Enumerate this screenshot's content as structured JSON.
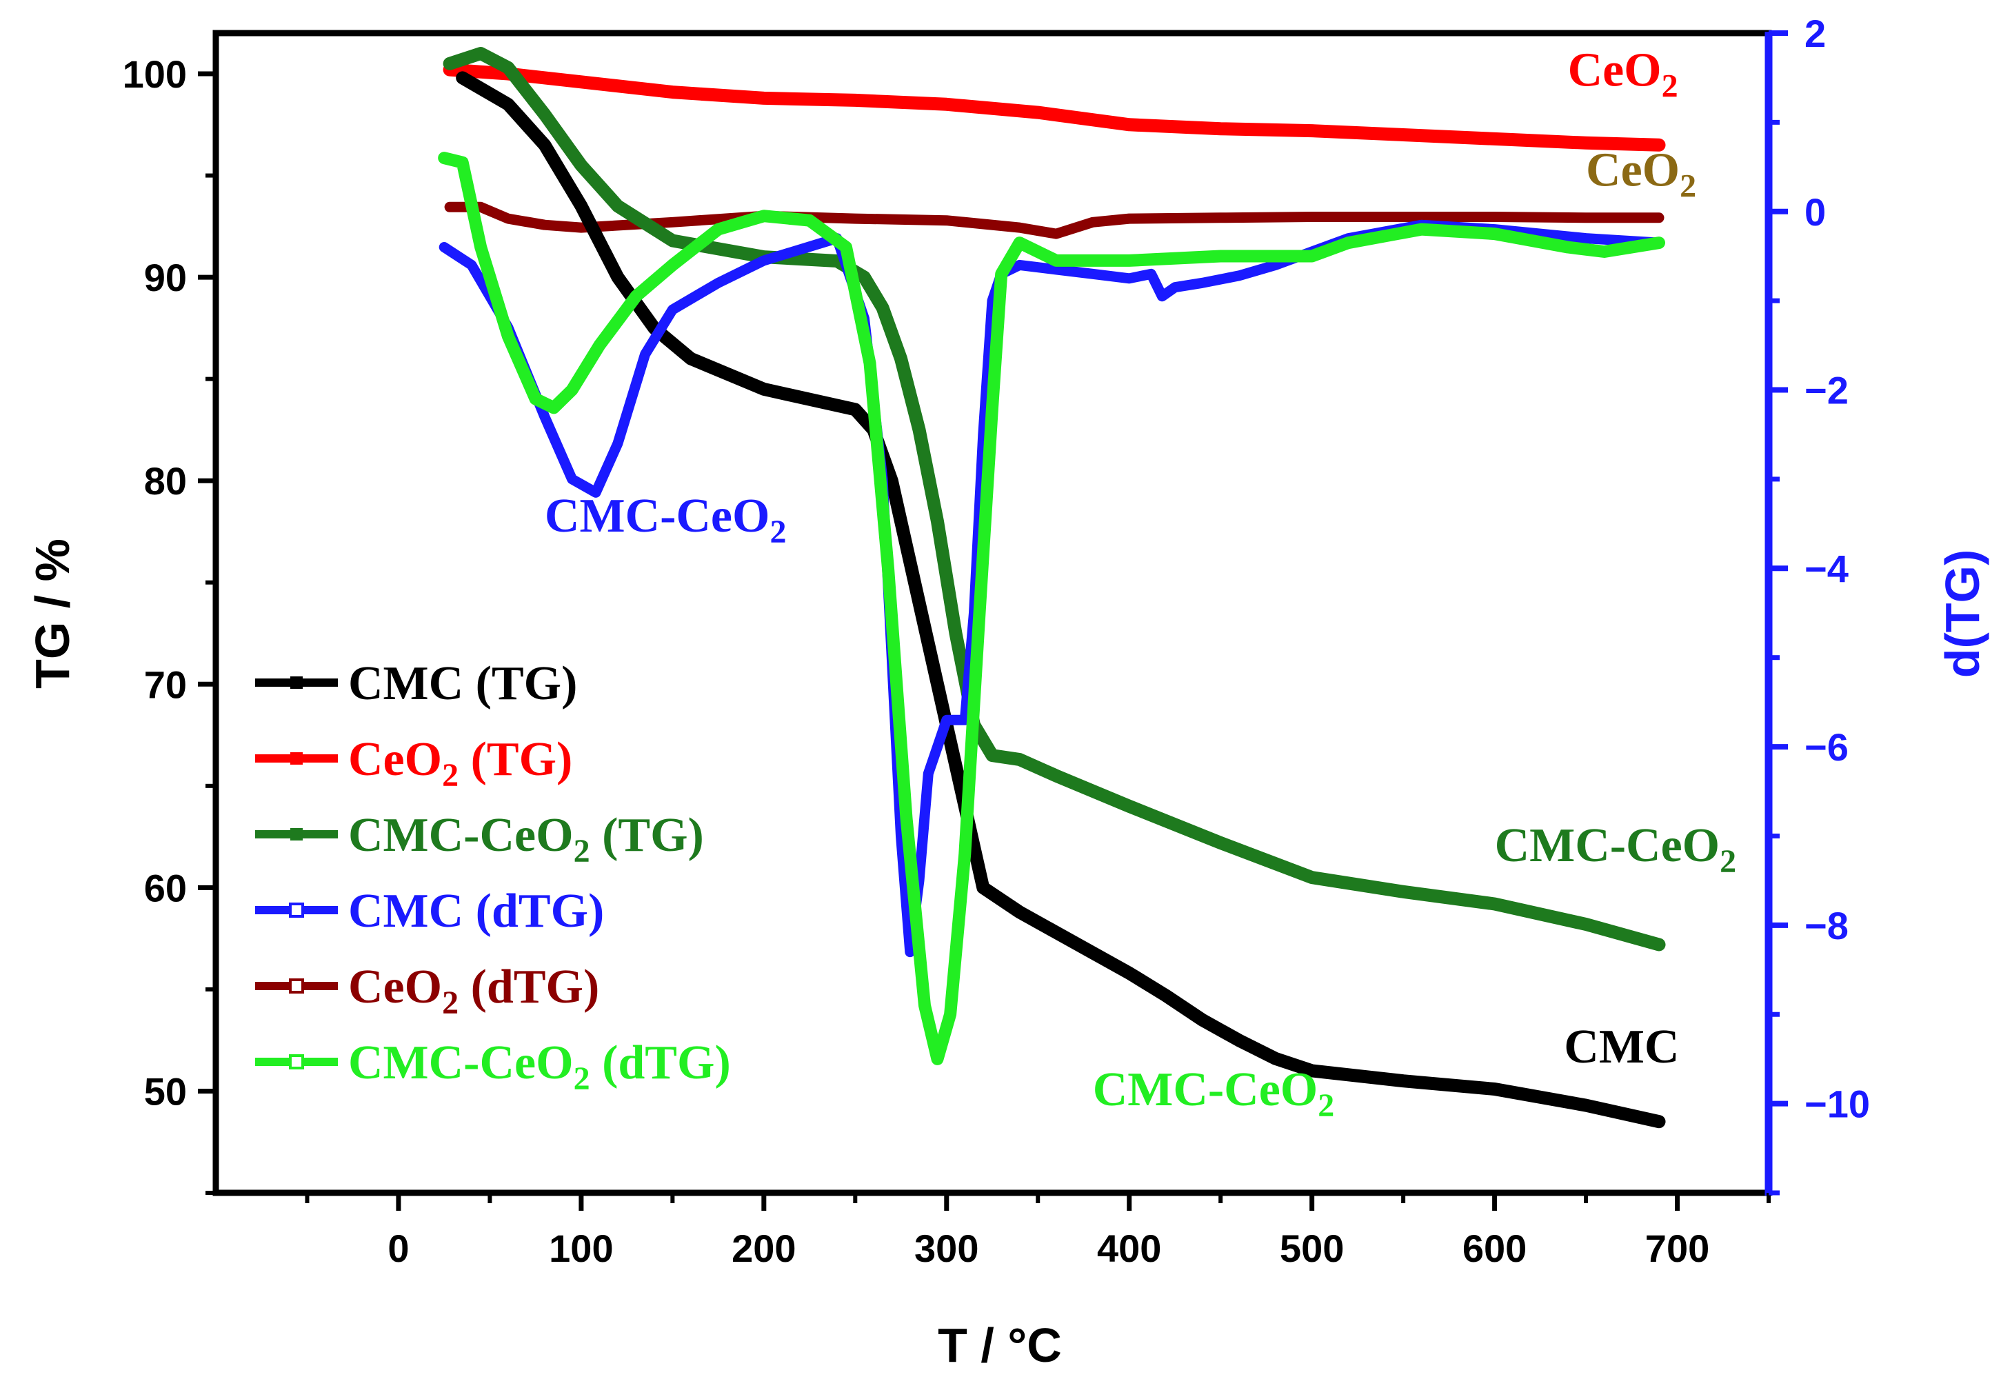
{
  "chart_data": {
    "type": "line",
    "title": "",
    "xlabel": "T / °C",
    "ylabel": "TG / %",
    "y2label": "d(TG)",
    "xlim": [
      -100,
      750
    ],
    "ylim": [
      45,
      102
    ],
    "y2lim": [
      -11,
      2
    ],
    "xticks": [
      "0",
      "100",
      "200",
      "300",
      "400",
      "500",
      "600",
      "700"
    ],
    "yticks": [
      "50",
      "60",
      "70",
      "80",
      "90",
      "100"
    ],
    "y2ticks": [
      "2",
      "0",
      "-2",
      "-4",
      "-6",
      "-8",
      "-10"
    ],
    "series": [
      {
        "name": "CMC (TG)",
        "axis": "left",
        "color": "#000000",
        "x": [
          35,
          60,
          80,
          100,
          120,
          140,
          160,
          200,
          250,
          260,
          270,
          280,
          290,
          300,
          310,
          320,
          340,
          360,
          380,
          400,
          420,
          440,
          460,
          480,
          500,
          550,
          600,
          650,
          690
        ],
        "y": [
          99.8,
          98.5,
          96.5,
          93.5,
          90,
          87.5,
          86,
          84.5,
          83.5,
          82.5,
          80,
          76,
          72,
          68,
          64,
          60,
          58.8,
          57.8,
          56.8,
          55.8,
          54.7,
          53.5,
          52.5,
          51.6,
          51,
          50.5,
          50.1,
          49.3,
          48.5
        ]
      },
      {
        "name": "CeO2 (TG)",
        "axis": "left",
        "color": "#ff0000",
        "x": [
          28,
          60,
          100,
          150,
          200,
          250,
          300,
          350,
          400,
          450,
          500,
          550,
          600,
          650,
          690
        ],
        "y": [
          100.2,
          100,
          99.6,
          99.1,
          98.8,
          98.7,
          98.5,
          98.1,
          97.5,
          97.3,
          97.2,
          97,
          96.8,
          96.6,
          96.5
        ]
      },
      {
        "name": "CMC-CeO2 (TG)",
        "axis": "left",
        "color": "#1e7a1e",
        "x": [
          28,
          45,
          60,
          80,
          100,
          120,
          150,
          200,
          240,
          255,
          265,
          275,
          285,
          295,
          305,
          315,
          325,
          340,
          360,
          400,
          450,
          500,
          550,
          600,
          650,
          690
        ],
        "y": [
          100.5,
          101,
          100.3,
          98,
          95.5,
          93.5,
          91.8,
          91,
          90.8,
          90,
          88.5,
          86,
          82.5,
          78,
          72.5,
          68,
          66.5,
          66.3,
          65.5,
          64,
          62.2,
          60.5,
          59.8,
          59.2,
          58.2,
          57.2
        ]
      },
      {
        "name": "CMC (dTG)",
        "axis": "right",
        "color": "#1a1aff",
        "x": [
          25,
          40,
          60,
          80,
          95,
          108,
          120,
          135,
          150,
          175,
          200,
          240,
          255,
          265,
          270,
          275,
          280,
          285,
          290,
          300,
          310,
          315,
          320,
          325,
          330,
          340,
          360,
          380,
          400,
          412,
          418,
          425,
          440,
          460,
          480,
          520,
          560,
          600,
          650,
          690
        ],
        "y": [
          -0.4,
          -0.6,
          -1.3,
          -2.3,
          -3.0,
          -3.15,
          -2.6,
          -1.6,
          -1.1,
          -0.8,
          -0.55,
          -0.3,
          -1.2,
          -3.0,
          -5.0,
          -7.0,
          -8.3,
          -7.5,
          -6.3,
          -5.7,
          -5.7,
          -4.5,
          -2.5,
          -1.0,
          -0.7,
          -0.6,
          -0.65,
          -0.7,
          -0.75,
          -0.7,
          -0.95,
          -0.85,
          -0.8,
          -0.72,
          -0.6,
          -0.3,
          -0.15,
          -0.2,
          -0.3,
          -0.35
        ]
      },
      {
        "name": "CeO2 (dTG)",
        "axis": "right",
        "color": "#8b0000",
        "x": [
          28,
          45,
          60,
          80,
          100,
          150,
          200,
          250,
          300,
          340,
          360,
          380,
          400,
          450,
          500,
          550,
          600,
          650,
          690
        ],
        "y": [
          0.05,
          0.05,
          -0.08,
          -0.15,
          -0.18,
          -0.12,
          -0.05,
          -0.08,
          -0.1,
          -0.18,
          -0.25,
          -0.12,
          -0.08,
          -0.07,
          -0.06,
          -0.06,
          -0.06,
          -0.07,
          -0.07
        ]
      },
      {
        "name": "CMC-CeO2 (dTG)",
        "axis": "right",
        "color": "#22ee22",
        "x": [
          25,
          35,
          45,
          60,
          75,
          85,
          95,
          110,
          130,
          150,
          175,
          200,
          225,
          245,
          258,
          268,
          278,
          288,
          295,
          302,
          310,
          318,
          325,
          330,
          340,
          360,
          400,
          450,
          500,
          520,
          560,
          600,
          640,
          660,
          690
        ],
        "y": [
          0.6,
          0.55,
          -0.4,
          -1.4,
          -2.1,
          -2.2,
          -2.0,
          -1.5,
          -0.95,
          -0.6,
          -0.2,
          -0.05,
          -0.1,
          -0.4,
          -1.7,
          -4.0,
          -6.8,
          -8.9,
          -9.5,
          -9.0,
          -7.2,
          -4.5,
          -2.2,
          -0.7,
          -0.35,
          -0.55,
          -0.55,
          -0.5,
          -0.5,
          -0.35,
          -0.2,
          -0.25,
          -0.4,
          -0.45,
          -0.35
        ]
      }
    ],
    "legend": {
      "placement": "left-bottom",
      "items": [
        {
          "text": "CMC (TG)",
          "color": "#000000",
          "marker": "filled"
        },
        {
          "text": "CeO",
          "sub": "2",
          "rest": " (TG)",
          "color": "#ff0000",
          "marker": "filled"
        },
        {
          "text": "CMC-CeO",
          "sub": "2",
          "rest": " (TG)",
          "color": "#1e7a1e",
          "marker": "filled"
        },
        {
          "text": "CMC (dTG)",
          "color": "#1a1aff",
          "marker": "open"
        },
        {
          "text": "CeO",
          "sub": "2",
          "rest": " (dTG)",
          "color": "#8b0000",
          "marker": "open"
        },
        {
          "text": "CMC-CeO",
          "sub": "2",
          "rest": " (dTG)",
          "color": "#22ee22",
          "marker": "open"
        }
      ]
    },
    "annotations": [
      {
        "text": "CeO",
        "sub": "2",
        "color": "#ff0000",
        "axis": "left",
        "x": 640,
        "y": 99.4
      },
      {
        "text": "CeO",
        "sub": "2",
        "color": "#8b6914",
        "axis": "left",
        "x": 650,
        "y": 94.5
      },
      {
        "text": "CMC-CeO",
        "sub": "2",
        "color": "#1a1aff",
        "axis": "left",
        "x": 80,
        "y": 77.5
      },
      {
        "text": "CMC-CeO",
        "sub": "2",
        "color": "#1e7a1e",
        "axis": "left",
        "x": 600,
        "y": 61.3
      },
      {
        "text": "CMC",
        "color": "#000000",
        "axis": "left",
        "x": 638,
        "y": 51.4
      },
      {
        "text": "CMC-CeO",
        "sub": "2",
        "color": "#22ee22",
        "axis": "left",
        "x": 380,
        "y": 49.3
      }
    ]
  }
}
